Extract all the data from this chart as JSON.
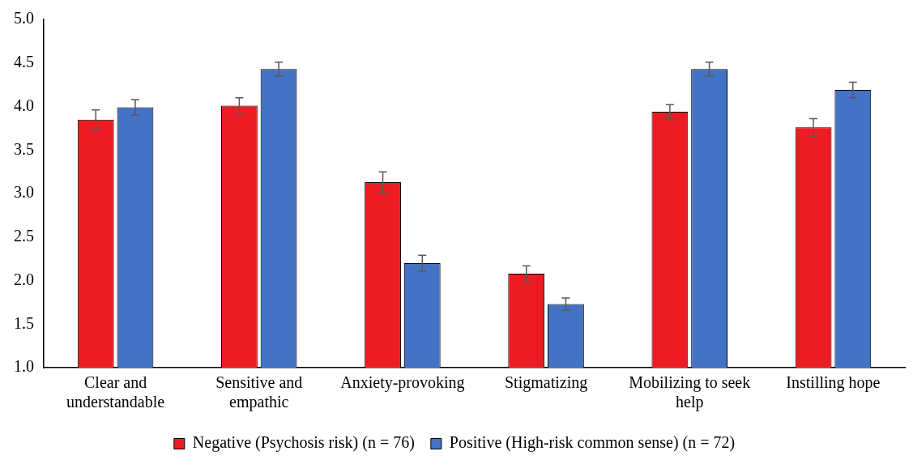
{
  "chart_data": {
    "type": "bar",
    "categories": [
      "Clear and understandable",
      "Sensitive and empathic",
      "Anxiety-provoking",
      "Stigmatizing",
      "Mobilizing to seek help",
      "Instilling hope"
    ],
    "series": [
      {
        "name": "Negative (Psychosis risk) (n = 76)",
        "color": "#ed1c24",
        "values": [
          3.85,
          4.01,
          3.13,
          2.08,
          3.94,
          3.76
        ],
        "errors": [
          0.11,
          0.09,
          0.12,
          0.09,
          0.08,
          0.1
        ]
      },
      {
        "name": "Positive (High-risk common sense) (n = 72)",
        "color": "#4472c4",
        "values": [
          3.99,
          4.43,
          2.2,
          1.73,
          4.43,
          4.19
        ],
        "errors": [
          0.09,
          0.08,
          0.09,
          0.07,
          0.08,
          0.09
        ]
      }
    ],
    "ylim": [
      1,
      5
    ],
    "yticks": [
      {
        "value": 1,
        "label": "1.0"
      },
      1.5,
      {
        "value": 2,
        "label": "2.0"
      },
      2.5,
      {
        "value": 3,
        "label": "3.0"
      },
      3.5,
      {
        "value": 4,
        "label": "4.0"
      },
      4.5,
      {
        "value": 5,
        "label": "5.0"
      }
    ],
    "grid": false,
    "legend": "bottom"
  }
}
